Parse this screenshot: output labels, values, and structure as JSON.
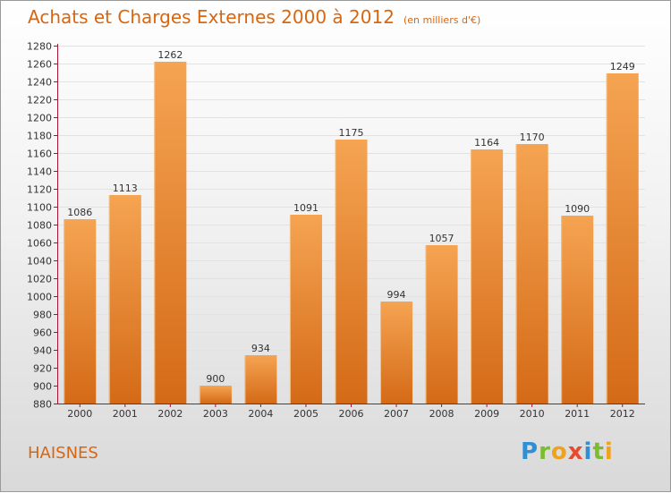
{
  "title": "Achats et Charges Externes 2000 à 2012",
  "unit_note": "(en milliers d'€)",
  "commune": "HAISNES",
  "logo": {
    "letters": [
      "P",
      "r",
      "o",
      "x",
      "i",
      "t",
      "i"
    ],
    "colors": [
      "#2e8fd6",
      "#7dbb2f",
      "#f0a21c",
      "#e84a2e",
      "#2e8fd6",
      "#7dbb2f",
      "#f0a21c"
    ]
  },
  "colors": {
    "bar_light": "#f5a452",
    "bar_dark": "#d46a17",
    "accent": "#d9660f",
    "axis": "#aa1133"
  },
  "chart_data": {
    "type": "bar",
    "categories": [
      "2000",
      "2001",
      "2002",
      "2003",
      "2004",
      "2005",
      "2006",
      "2007",
      "2008",
      "2009",
      "2010",
      "2011",
      "2012"
    ],
    "values": [
      1086,
      1113,
      1262,
      900,
      934,
      1091,
      1175,
      994,
      1057,
      1164,
      1170,
      1090,
      1249
    ],
    "title": "Achats et Charges Externes 2000 à 2012",
    "subtitle": "(en milliers d'€)",
    "xlabel": "",
    "ylabel": "",
    "ylim": [
      880,
      1280
    ],
    "ytick_step": 20,
    "grid": true,
    "data_labels": true
  }
}
